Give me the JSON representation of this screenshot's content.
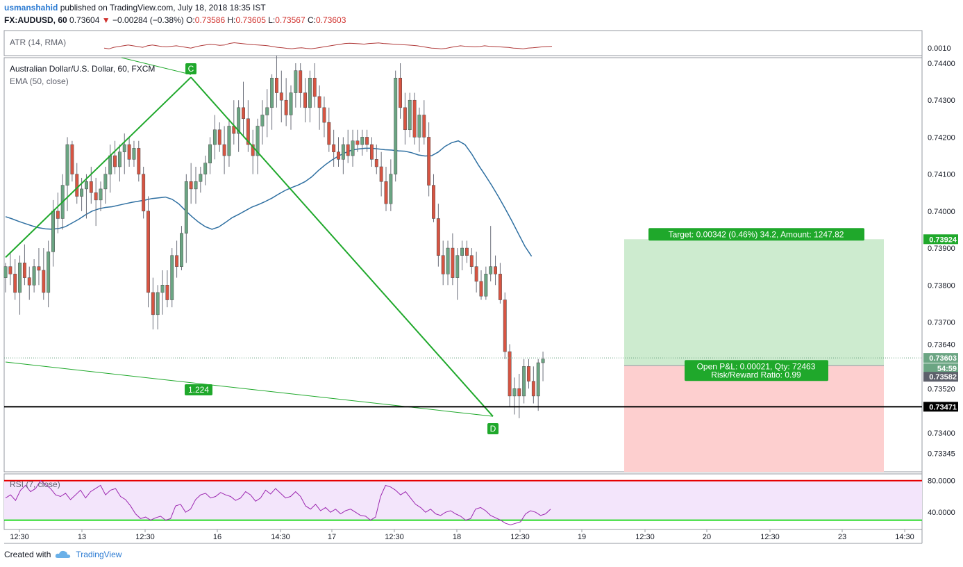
{
  "header": {
    "author": "usmanshahid",
    "published_text": "published on TradingView.com, July 18, 2018 18:35 IST",
    "symbol": "FX:AUDUSD, 60",
    "last": "0.73604",
    "arrow": "▼",
    "change": "−0.00284 (−0.38%)",
    "o_label": "O:",
    "o": "0.73586",
    "h_label": "H:",
    "h": "0.73605",
    "l_label": "L:",
    "l": "0.73567",
    "c_label": "C:",
    "c": "0.73603"
  },
  "indicators": {
    "atr": "ATR (14, RMA)",
    "main_title": "Australian Dollar/U.S. Dollar, 60, FXCM",
    "ema": "EMA (50, close)",
    "rsi": "RSI (7, close)"
  },
  "footer": {
    "created_with": "Created with",
    "brand": "TradingView"
  },
  "colors": {
    "up": "#6ba583",
    "down": "#d75442",
    "ema": "#2e6fa1",
    "atr": "#b03a3a",
    "pattern": "#1fa82b",
    "target_fill": "#cdebcf",
    "stop_fill": "#fdcfcf",
    "rsi_line": "#9c27b0",
    "rsi_fill": "#f3e5fb",
    "rsi_upper": "#e60000",
    "rsi_lower": "#26d926"
  },
  "chart_data": {
    "type": "candlestick",
    "symbol": "FX:AUDUSD",
    "timeframe": "60",
    "y_ticks": [
      "0.74400",
      "0.74300",
      "0.74200",
      "0.74100",
      "0.74000",
      "0.73900",
      "0.73800",
      "0.73700",
      "0.73640",
      "0.73520",
      "0.73400",
      "0.73345"
    ],
    "ylim": [
      0.73295,
      0.74415
    ],
    "x_ticks": [
      "12:30",
      "13",
      "12:30",
      "16",
      "14:30",
      "17",
      "12:30",
      "18",
      "12:30",
      "19",
      "12:30",
      "20",
      "12:30",
      "23",
      "14:30"
    ],
    "price_badges": [
      {
        "label": "0.73924",
        "value": 0.73924,
        "color": "#1fa82b"
      },
      {
        "label": "0.73603",
        "value": 0.73603,
        "color": "#6ba583"
      },
      {
        "label": "54:59",
        "value": 0.73575,
        "color": "#6ba583"
      },
      {
        "label": "0.73582",
        "value": 0.73552,
        "color": "#5d606b"
      },
      {
        "label": "0.73471",
        "value": 0.73471,
        "color": "#000000"
      }
    ],
    "current_price": 0.73603,
    "horizontal_level": 0.73471,
    "ohlc": [
      [
        0.7382,
        0.7386,
        0.7378,
        0.7385
      ],
      [
        0.7385,
        0.7389,
        0.738,
        0.7383
      ],
      [
        0.7383,
        0.7387,
        0.7376,
        0.7378
      ],
      [
        0.7378,
        0.7388,
        0.7372,
        0.7386
      ],
      [
        0.7386,
        0.7391,
        0.738,
        0.7382
      ],
      [
        0.7382,
        0.7385,
        0.7376,
        0.738
      ],
      [
        0.738,
        0.7387,
        0.7378,
        0.7385
      ],
      [
        0.7385,
        0.739,
        0.738,
        0.7384
      ],
      [
        0.7384,
        0.739,
        0.7376,
        0.7378
      ],
      [
        0.7378,
        0.7392,
        0.7374,
        0.7389
      ],
      [
        0.7389,
        0.7403,
        0.7385,
        0.74
      ],
      [
        0.74,
        0.7405,
        0.7394,
        0.7398
      ],
      [
        0.7398,
        0.741,
        0.7395,
        0.7407
      ],
      [
        0.7407,
        0.742,
        0.74,
        0.7418
      ],
      [
        0.7418,
        0.7419,
        0.7408,
        0.741
      ],
      [
        0.741,
        0.7413,
        0.7402,
        0.7404
      ],
      [
        0.7404,
        0.7409,
        0.74,
        0.7406
      ],
      [
        0.7406,
        0.741,
        0.7398,
        0.7408
      ],
      [
        0.7408,
        0.7412,
        0.7402,
        0.7405
      ],
      [
        0.7405,
        0.7409,
        0.7396,
        0.7403
      ],
      [
        0.7403,
        0.7408,
        0.74,
        0.7406
      ],
      [
        0.7406,
        0.7412,
        0.7402,
        0.741
      ],
      [
        0.741,
        0.7418,
        0.7405,
        0.7415
      ],
      [
        0.7415,
        0.7419,
        0.741,
        0.7412
      ],
      [
        0.7412,
        0.7418,
        0.7408,
        0.7416
      ],
      [
        0.7416,
        0.7421,
        0.741,
        0.7418
      ],
      [
        0.7418,
        0.742,
        0.7412,
        0.7414
      ],
      [
        0.7414,
        0.7419,
        0.7412,
        0.7417
      ],
      [
        0.7417,
        0.7419,
        0.7408,
        0.741
      ],
      [
        0.741,
        0.7412,
        0.7398,
        0.74
      ],
      [
        0.74,
        0.7404,
        0.7374,
        0.7378
      ],
      [
        0.7378,
        0.7382,
        0.7368,
        0.7372
      ],
      [
        0.7372,
        0.738,
        0.7368,
        0.7378
      ],
      [
        0.7378,
        0.7384,
        0.7372,
        0.738
      ],
      [
        0.738,
        0.7384,
        0.7374,
        0.7376
      ],
      [
        0.7376,
        0.739,
        0.7374,
        0.7388
      ],
      [
        0.7388,
        0.7392,
        0.7382,
        0.7385
      ],
      [
        0.7385,
        0.7396,
        0.7384,
        0.7394
      ],
      [
        0.7394,
        0.741,
        0.7386,
        0.7408
      ],
      [
        0.7408,
        0.7413,
        0.7402,
        0.7406
      ],
      [
        0.7406,
        0.7412,
        0.7402,
        0.7408
      ],
      [
        0.7408,
        0.7412,
        0.7405,
        0.741
      ],
      [
        0.741,
        0.7415,
        0.7407,
        0.7413
      ],
      [
        0.7413,
        0.742,
        0.741,
        0.7418
      ],
      [
        0.7418,
        0.7426,
        0.7414,
        0.7422
      ],
      [
        0.7422,
        0.7424,
        0.7416,
        0.7418
      ],
      [
        0.7418,
        0.7423,
        0.741,
        0.7415
      ],
      [
        0.7415,
        0.7425,
        0.7412,
        0.7423
      ],
      [
        0.7423,
        0.743,
        0.7418,
        0.7421
      ],
      [
        0.7421,
        0.743,
        0.7416,
        0.7428
      ],
      [
        0.7428,
        0.7435,
        0.742,
        0.7425
      ],
      [
        0.7425,
        0.743,
        0.7416,
        0.7418
      ],
      [
        0.7418,
        0.7422,
        0.741,
        0.7415
      ],
      [
        0.7415,
        0.7425,
        0.741,
        0.7423
      ],
      [
        0.7423,
        0.743,
        0.7418,
        0.7426
      ],
      [
        0.7426,
        0.7433,
        0.742,
        0.7428
      ],
      [
        0.7428,
        0.7437,
        0.7422,
        0.7436
      ],
      [
        0.7436,
        0.7442,
        0.7428,
        0.7432
      ],
      [
        0.7432,
        0.7438,
        0.7424,
        0.743
      ],
      [
        0.743,
        0.7436,
        0.7423,
        0.7426
      ],
      [
        0.7426,
        0.7434,
        0.7422,
        0.7432
      ],
      [
        0.7432,
        0.744,
        0.7428,
        0.7438
      ],
      [
        0.7438,
        0.744,
        0.7428,
        0.7432
      ],
      [
        0.7432,
        0.7436,
        0.7424,
        0.7428
      ],
      [
        0.7428,
        0.7438,
        0.7424,
        0.7436
      ],
      [
        0.7436,
        0.744,
        0.7428,
        0.7431
      ],
      [
        0.7431,
        0.7434,
        0.7422,
        0.7428
      ],
      [
        0.7428,
        0.7431,
        0.742,
        0.7424
      ],
      [
        0.7424,
        0.7428,
        0.7416,
        0.7418
      ],
      [
        0.7418,
        0.7422,
        0.7412,
        0.7416
      ],
      [
        0.7416,
        0.742,
        0.7412,
        0.7414
      ],
      [
        0.7414,
        0.742,
        0.741,
        0.7418
      ],
      [
        0.7418,
        0.7422,
        0.7413,
        0.7415
      ],
      [
        0.7415,
        0.7422,
        0.7412,
        0.7419
      ],
      [
        0.7419,
        0.7422,
        0.7416,
        0.7418
      ],
      [
        0.7418,
        0.7422,
        0.7415,
        0.742
      ],
      [
        0.742,
        0.7422,
        0.7416,
        0.7418
      ],
      [
        0.7418,
        0.742,
        0.7412,
        0.7414
      ],
      [
        0.7414,
        0.7418,
        0.741,
        0.7412
      ],
      [
        0.7412,
        0.7416,
        0.7404,
        0.7408
      ],
      [
        0.7408,
        0.7412,
        0.74,
        0.7402
      ],
      [
        0.7402,
        0.7414,
        0.74,
        0.741
      ],
      [
        0.741,
        0.7438,
        0.7408,
        0.7436
      ],
      [
        0.7436,
        0.744,
        0.7425,
        0.7428
      ],
      [
        0.7428,
        0.7432,
        0.7418,
        0.7422
      ],
      [
        0.7422,
        0.7432,
        0.742,
        0.743
      ],
      [
        0.743,
        0.7432,
        0.7418,
        0.742
      ],
      [
        0.742,
        0.7428,
        0.7416,
        0.7426
      ],
      [
        0.7426,
        0.743,
        0.7418,
        0.742
      ],
      [
        0.742,
        0.7424,
        0.7404,
        0.7407
      ],
      [
        0.7407,
        0.741,
        0.7397,
        0.7398
      ],
      [
        0.7398,
        0.7402,
        0.7385,
        0.7388
      ],
      [
        0.7388,
        0.7392,
        0.738,
        0.7383
      ],
      [
        0.7383,
        0.7392,
        0.738,
        0.739
      ],
      [
        0.739,
        0.7394,
        0.738,
        0.7382
      ],
      [
        0.7382,
        0.739,
        0.7376,
        0.7388
      ],
      [
        0.7388,
        0.7392,
        0.7384,
        0.739
      ],
      [
        0.739,
        0.7392,
        0.7386,
        0.7388
      ],
      [
        0.7388,
        0.739,
        0.7383,
        0.7385
      ],
      [
        0.7385,
        0.7389,
        0.7378,
        0.7381
      ],
      [
        0.7381,
        0.7384,
        0.7376,
        0.7377
      ],
      [
        0.7377,
        0.7385,
        0.7376,
        0.7383
      ],
      [
        0.7383,
        0.7396,
        0.7381,
        0.7385
      ],
      [
        0.7385,
        0.7388,
        0.738,
        0.7383
      ],
      [
        0.7383,
        0.7386,
        0.7375,
        0.7376
      ],
      [
        0.7376,
        0.7378,
        0.736,
        0.7362
      ],
      [
        0.7362,
        0.7364,
        0.7347,
        0.735
      ],
      [
        0.735,
        0.7355,
        0.7345,
        0.7352
      ],
      [
        0.7352,
        0.7356,
        0.7344,
        0.735
      ],
      [
        0.735,
        0.736,
        0.7348,
        0.7358
      ],
      [
        0.7358,
        0.736,
        0.7352,
        0.7354
      ],
      [
        0.7354,
        0.7358,
        0.7348,
        0.735
      ],
      [
        0.735,
        0.736,
        0.7346,
        0.7359
      ],
      [
        0.7359,
        0.7362,
        0.7354,
        0.736
      ]
    ],
    "ema_values": [
      0.73985,
      0.73979,
      0.73972,
      0.73966,
      0.7396,
      0.73955,
      0.73952,
      0.73951,
      0.73953,
      0.73958,
      0.73968,
      0.73978,
      0.7399,
      0.74,
      0.74006,
      0.7401,
      0.74012,
      0.74016,
      0.7402,
      0.74024,
      0.74027,
      0.7403,
      0.74034,
      0.74036,
      0.74038,
      0.74032,
      0.7402,
      0.74002,
      0.73985,
      0.7397,
      0.73958,
      0.73951,
      0.73957,
      0.73969,
      0.73982,
      0.73991,
      0.74001,
      0.74011,
      0.74018,
      0.74026,
      0.74035,
      0.74046,
      0.74056,
      0.74064,
      0.74071,
      0.7408,
      0.74093,
      0.7411,
      0.74125,
      0.74138,
      0.74149,
      0.74158,
      0.74165,
      0.74168,
      0.7417,
      0.7417,
      0.74168,
      0.74166,
      0.74165,
      0.74163,
      0.74162,
      0.74158,
      0.74152,
      0.74149,
      0.7415,
      0.7416,
      0.74175,
      0.74185,
      0.7419,
      0.7418,
      0.74155,
      0.74125,
      0.74098,
      0.7407,
      0.7404,
      0.74008,
      0.73975,
      0.7394,
      0.73905,
      0.73878
    ],
    "ema_first_index": 0,
    "ema_step": 1.15,
    "atr": {
      "tick": "0.0010",
      "points": [
        0.4,
        0.35,
        0.45,
        0.5,
        0.55,
        0.6,
        0.55,
        0.5,
        0.45,
        0.55,
        0.6,
        0.55,
        0.5,
        0.48,
        0.52,
        0.55,
        0.5,
        0.45,
        0.4,
        0.48,
        0.55,
        0.6,
        0.65,
        0.62,
        0.58,
        0.6,
        0.7,
        0.75,
        0.72,
        0.68,
        0.65,
        0.62,
        0.6,
        0.58,
        0.55,
        0.5,
        0.45,
        0.42,
        0.38,
        0.36,
        0.4,
        0.42,
        0.38,
        0.36,
        0.4,
        0.45,
        0.5,
        0.55,
        0.6,
        0.65,
        0.7,
        0.72,
        0.7,
        0.68,
        0.66,
        0.7,
        0.72,
        0.74,
        0.7,
        0.68,
        0.66,
        0.64,
        0.62,
        0.6,
        0.58,
        0.55,
        0.5,
        0.45,
        0.4,
        0.38,
        0.35,
        0.38,
        0.45,
        0.5,
        0.55,
        0.52,
        0.5,
        0.48,
        0.5,
        0.55,
        0.52,
        0.5,
        0.48,
        0.46,
        0.44,
        0.4,
        0.38,
        0.35,
        0.4,
        0.42,
        0.45,
        0.48,
        0.5,
        0.52
      ]
    },
    "rsi": {
      "ticks": [
        "80.0000",
        "40.0000"
      ],
      "upper": 80,
      "lower": 30,
      "points": [
        58,
        62,
        55,
        68,
        74,
        66,
        70,
        80,
        75,
        70,
        62,
        60,
        64,
        56,
        62,
        68,
        58,
        66,
        70,
        74,
        62,
        68,
        70,
        60,
        56,
        48,
        38,
        32,
        34,
        30,
        33,
        35,
        30,
        32,
        48,
        50,
        40,
        44,
        56,
        62,
        64,
        58,
        60,
        65,
        62,
        60,
        55,
        58,
        66,
        62,
        54,
        58,
        68,
        63,
        70,
        64,
        58,
        60,
        66,
        60,
        48,
        44,
        50,
        42,
        46,
        40,
        44,
        38,
        42,
        44,
        40,
        36,
        35,
        30,
        34,
        60,
        74,
        72,
        68,
        62,
        66,
        58,
        50,
        46,
        40,
        44,
        38,
        36,
        40,
        42,
        38,
        35,
        30,
        32,
        44,
        46,
        42,
        36,
        33,
        30,
        26,
        24,
        26,
        28,
        38,
        42,
        40,
        36,
        38,
        44
      ]
    },
    "pattern_points": {
      "C_value": 0.74362,
      "D_value": 0.73445
    },
    "fib_label": "1.224",
    "labels": {
      "C": "C",
      "D": "D"
    },
    "position": {
      "target_label": "Target: 0.00342 (0.46%) 34.2, Amount: 1247.82",
      "pnl_label": "Open P&L: 0.00021, Qty: 72463",
      "rr_label": "Risk/Reward Ratio: 0.99",
      "entry": 0.73582,
      "target": 0.73924,
      "stop": 0.73295
    }
  }
}
